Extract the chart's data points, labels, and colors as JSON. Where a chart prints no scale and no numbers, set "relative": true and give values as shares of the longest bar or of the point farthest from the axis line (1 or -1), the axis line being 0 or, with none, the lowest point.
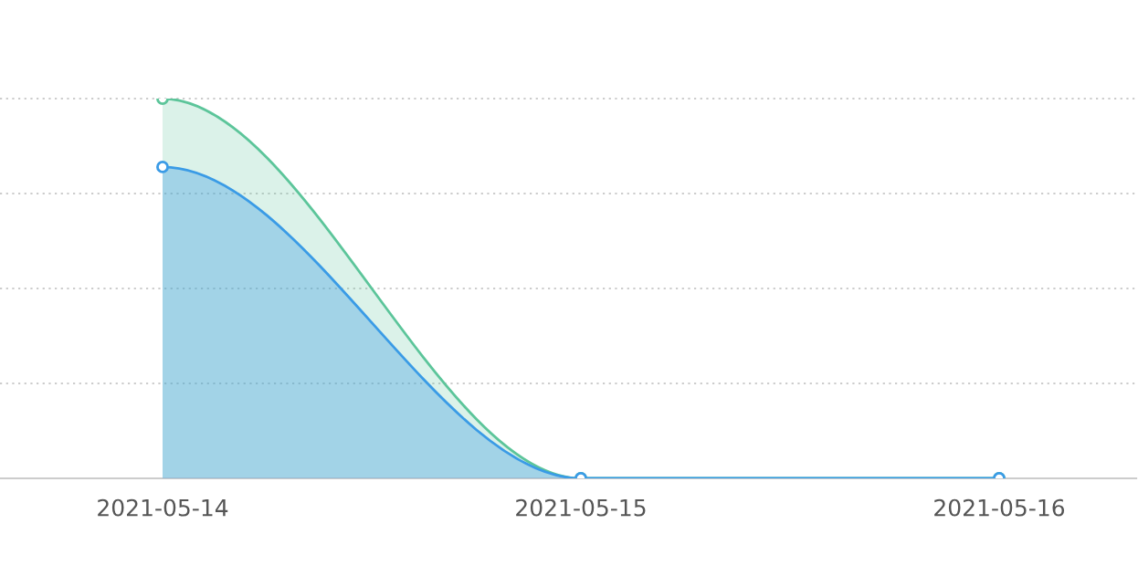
{
  "chart_data": {
    "type": "area",
    "relative": true,
    "categories": [
      "2021-05-14",
      "2021-05-15",
      "2021-05-16"
    ],
    "series": [
      {
        "color": "#5cc59a",
        "values": [
          1,
          0,
          0
        ]
      },
      {
        "color": "#3a9be6",
        "values": [
          0.82,
          0,
          0
        ]
      }
    ],
    "grid": "y",
    "marker": "circle",
    "line_style": "solid",
    "legend": false
  }
}
